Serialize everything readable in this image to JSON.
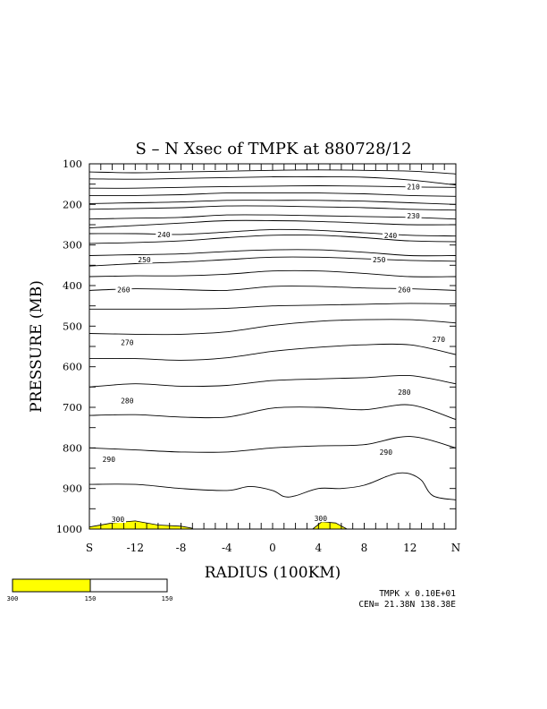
{
  "chart_data": {
    "type": "contour",
    "title": "S – N Xsec of TMPK at 880728/12",
    "xlabel": "RADIUS (100KM)",
    "ylabel": "PRESSURE (MB)",
    "x_ticks": [
      {
        "v": -16,
        "label": "S"
      },
      {
        "v": -12,
        "label": "-12"
      },
      {
        "v": -8,
        "label": "-8"
      },
      {
        "v": -4,
        "label": "-4"
      },
      {
        "v": 0,
        "label": "0"
      },
      {
        "v": 4,
        "label": "4"
      },
      {
        "v": 8,
        "label": "8"
      },
      {
        "v": 12,
        "label": "12"
      },
      {
        "v": 16,
        "label": "N"
      }
    ],
    "xlim": [
      -16,
      16
    ],
    "ylim": [
      100,
      1000
    ],
    "y_ticks": [
      100,
      200,
      300,
      400,
      500,
      600,
      700,
      800,
      900,
      1000
    ],
    "contour_labels": [
      {
        "text": "210",
        "x": 12.3,
        "p": 156
      },
      {
        "text": "230",
        "x": 12.3,
        "p": 228
      },
      {
        "text": "240",
        "x": -9.5,
        "p": 274
      },
      {
        "text": "240",
        "x": 10.3,
        "p": 276
      },
      {
        "text": "250",
        "x": -11.2,
        "p": 336
      },
      {
        "text": "250",
        "x": 9.3,
        "p": 336
      },
      {
        "text": "260",
        "x": -13.0,
        "p": 410
      },
      {
        "text": "260",
        "x": 11.5,
        "p": 410
      },
      {
        "text": "270",
        "x": -12.7,
        "p": 540
      },
      {
        "text": "270",
        "x": 14.5,
        "p": 532
      },
      {
        "text": "280",
        "x": -12.7,
        "p": 683
      },
      {
        "text": "280",
        "x": 11.5,
        "p": 662
      },
      {
        "text": "290",
        "x": -14.3,
        "p": 828
      },
      {
        "text": "290",
        "x": 9.9,
        "p": 810
      },
      {
        "text": "300",
        "x": -13.5,
        "p": 976
      },
      {
        "text": "300",
        "x": 4.2,
        "p": 974
      }
    ],
    "isolines": [
      [
        [
          -16,
          120
        ],
        [
          -12,
          122
        ],
        [
          -8,
          120
        ],
        [
          -4,
          118
        ],
        [
          0,
          116
        ],
        [
          4,
          115
        ],
        [
          8,
          116
        ],
        [
          12,
          118
        ],
        [
          16,
          125
        ]
      ],
      [
        [
          -16,
          137
        ],
        [
          -12,
          138
        ],
        [
          -8,
          136
        ],
        [
          -4,
          134
        ],
        [
          0,
          132
        ],
        [
          4,
          132
        ],
        [
          8,
          133
        ],
        [
          12,
          140
        ],
        [
          16,
          152
        ]
      ],
      [
        [
          -16,
          160
        ],
        [
          -12,
          160
        ],
        [
          -8,
          158
        ],
        [
          -4,
          156
        ],
        [
          0,
          155
        ],
        [
          4,
          154
        ],
        [
          8,
          155
        ],
        [
          12,
          157
        ],
        [
          16,
          158
        ]
      ],
      [
        [
          -16,
          178
        ],
        [
          -12,
          178
        ],
        [
          -8,
          176
        ],
        [
          -4,
          172
        ],
        [
          0,
          172
        ],
        [
          4,
          172
        ],
        [
          8,
          174
        ],
        [
          12,
          178
        ],
        [
          16,
          180
        ]
      ],
      [
        [
          -16,
          198
        ],
        [
          -12,
          196
        ],
        [
          -8,
          194
        ],
        [
          -4,
          190
        ],
        [
          0,
          190
        ],
        [
          4,
          190
        ],
        [
          8,
          192
        ],
        [
          12,
          196
        ],
        [
          16,
          200
        ]
      ],
      [
        [
          -16,
          212
        ],
        [
          -12,
          210
        ],
        [
          -8,
          208
        ],
        [
          -4,
          204
        ],
        [
          0,
          204
        ],
        [
          4,
          206
        ],
        [
          8,
          208
        ],
        [
          12,
          212
        ],
        [
          16,
          214
        ]
      ],
      [
        [
          -16,
          236
        ],
        [
          -12,
          234
        ],
        [
          -8,
          232
        ],
        [
          -4,
          226
        ],
        [
          0,
          226
        ],
        [
          4,
          228
        ],
        [
          8,
          230
        ],
        [
          12,
          232
        ],
        [
          16,
          236
        ]
      ],
      [
        [
          -16,
          258
        ],
        [
          -12,
          252
        ],
        [
          -8,
          246
        ],
        [
          -4,
          240
        ],
        [
          0,
          240
        ],
        [
          4,
          242
        ],
        [
          8,
          246
        ],
        [
          12,
          250
        ],
        [
          16,
          250
        ]
      ],
      [
        [
          -16,
          272
        ],
        [
          -12,
          272
        ],
        [
          -8,
          274
        ],
        [
          -4,
          268
        ],
        [
          0,
          262
        ],
        [
          4,
          264
        ],
        [
          8,
          270
        ],
        [
          12,
          276
        ],
        [
          16,
          278
        ]
      ],
      [
        [
          -16,
          296
        ],
        [
          -12,
          294
        ],
        [
          -8,
          290
        ],
        [
          -4,
          282
        ],
        [
          0,
          276
        ],
        [
          4,
          276
        ],
        [
          8,
          282
        ],
        [
          12,
          290
        ],
        [
          16,
          292
        ]
      ],
      [
        [
          -16,
          326
        ],
        [
          -12,
          324
        ],
        [
          -8,
          322
        ],
        [
          -4,
          316
        ],
        [
          0,
          312
        ],
        [
          4,
          312
        ],
        [
          8,
          318
        ],
        [
          12,
          326
        ],
        [
          16,
          326
        ]
      ],
      [
        [
          -16,
          352
        ],
        [
          -12,
          346
        ],
        [
          -8,
          342
        ],
        [
          -4,
          336
        ],
        [
          0,
          330
        ],
        [
          4,
          330
        ],
        [
          8,
          334
        ],
        [
          12,
          338
        ],
        [
          16,
          340
        ]
      ],
      [
        [
          -16,
          378
        ],
        [
          -12,
          376
        ],
        [
          -8,
          376
        ],
        [
          -4,
          372
        ],
        [
          0,
          364
        ],
        [
          4,
          364
        ],
        [
          8,
          370
        ],
        [
          12,
          378
        ],
        [
          16,
          378
        ]
      ],
      [
        [
          -16,
          412
        ],
        [
          -12,
          408
        ],
        [
          -8,
          410
        ],
        [
          -4,
          412
        ],
        [
          0,
          402
        ],
        [
          4,
          402
        ],
        [
          8,
          406
        ],
        [
          12,
          408
        ],
        [
          16,
          412
        ]
      ],
      [
        [
          -16,
          458
        ],
        [
          -12,
          458
        ],
        [
          -8,
          458
        ],
        [
          -4,
          456
        ],
        [
          0,
          450
        ],
        [
          4,
          448
        ],
        [
          8,
          446
        ],
        [
          12,
          444
        ],
        [
          16,
          445
        ]
      ],
      [
        [
          -16,
          518
        ],
        [
          -12,
          520
        ],
        [
          -8,
          520
        ],
        [
          -4,
          514
        ],
        [
          0,
          498
        ],
        [
          4,
          488
        ],
        [
          8,
          484
        ],
        [
          12,
          484
        ],
        [
          16,
          492
        ]
      ],
      [
        [
          -16,
          580
        ],
        [
          -12,
          580
        ],
        [
          -8,
          584
        ],
        [
          -4,
          578
        ],
        [
          0,
          562
        ],
        [
          4,
          552
        ],
        [
          8,
          546
        ],
        [
          12,
          546
        ],
        [
          16,
          570
        ]
      ],
      [
        [
          -16,
          650
        ],
        [
          -12,
          642
        ],
        [
          -8,
          648
        ],
        [
          -4,
          646
        ],
        [
          0,
          634
        ],
        [
          4,
          630
        ],
        [
          8,
          627
        ],
        [
          12,
          622
        ],
        [
          16,
          642
        ]
      ],
      [
        [
          -16,
          720
        ],
        [
          -12,
          718
        ],
        [
          -8,
          724
        ],
        [
          -4,
          724
        ],
        [
          0,
          702
        ],
        [
          4,
          700
        ],
        [
          8,
          706
        ],
        [
          12,
          694
        ],
        [
          16,
          730
        ]
      ],
      [
        [
          -16,
          800
        ],
        [
          -12,
          805
        ],
        [
          -8,
          810
        ],
        [
          -4,
          810
        ],
        [
          0,
          800
        ],
        [
          4,
          795
        ],
        [
          8,
          792
        ],
        [
          12,
          772
        ],
        [
          16,
          800
        ]
      ],
      [
        [
          -16,
          890
        ],
        [
          -12,
          890
        ],
        [
          -8,
          900
        ],
        [
          -4,
          905
        ],
        [
          -2,
          895
        ],
        [
          0,
          905
        ],
        [
          1,
          920
        ],
        [
          2,
          918
        ],
        [
          4,
          900
        ],
        [
          6,
          900
        ],
        [
          8,
          892
        ],
        [
          10,
          870
        ],
        [
          11,
          862
        ],
        [
          12,
          864
        ],
        [
          13,
          880
        ],
        [
          14,
          918
        ],
        [
          16,
          928
        ]
      ]
    ],
    "shaded_regions": [
      [
        [
          -16,
          995
        ],
        [
          -14,
          985
        ],
        [
          -12,
          980
        ],
        [
          -10,
          990
        ],
        [
          -8,
          993
        ],
        [
          -7,
          998
        ],
        [
          -7,
          1000
        ],
        [
          -16,
          1000
        ]
      ],
      [
        [
          3.5,
          1000
        ],
        [
          4.3,
          982
        ],
        [
          5.5,
          985
        ],
        [
          6.5,
          1000
        ]
      ]
    ],
    "shaded_color": "#ffff00",
    "colorbar": {
      "labels": [
        "300",
        "150",
        "150"
      ],
      "fill_color": "#ffff00"
    },
    "footer": {
      "field_info": "TMPK x  0.10E+01",
      "center": "CEN= 21.38N  138.38E"
    }
  }
}
